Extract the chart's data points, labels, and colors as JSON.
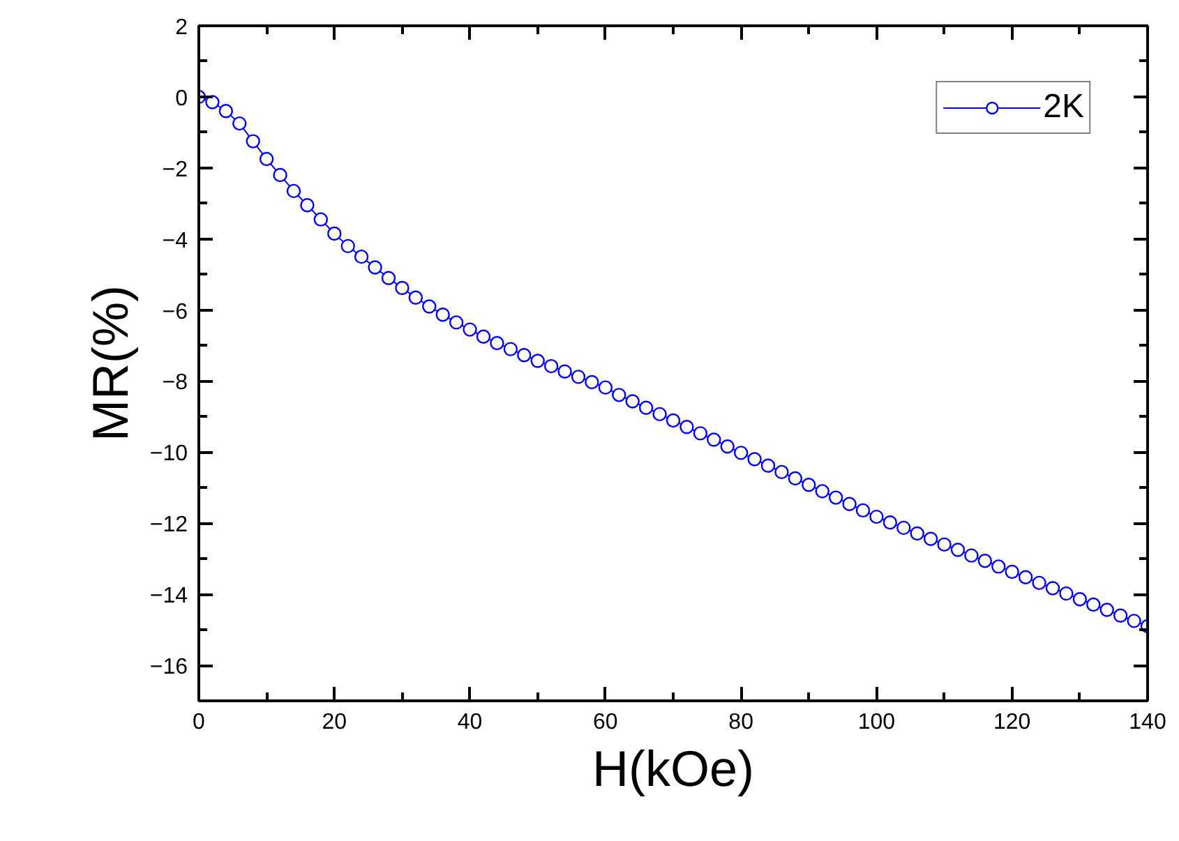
{
  "chart_data": {
    "type": "line",
    "xlabel": "H(kOe)",
    "ylabel": "MR(%)",
    "x": [
      0,
      2,
      4,
      6,
      8,
      10,
      12,
      14,
      16,
      18,
      20,
      22,
      24,
      26,
      28,
      30,
      32,
      34,
      36,
      38,
      40,
      42,
      44,
      46,
      48,
      50,
      52,
      54,
      56,
      58,
      60,
      62,
      64,
      66,
      68,
      70,
      72,
      74,
      76,
      78,
      80,
      82,
      84,
      86,
      88,
      90,
      92,
      94,
      96,
      98,
      100,
      102,
      104,
      106,
      108,
      110,
      112,
      114,
      116,
      118,
      120,
      122,
      124,
      126,
      128,
      130,
      132,
      134,
      136,
      138,
      140
    ],
    "series": [
      {
        "name": "2K",
        "color": "#0000ff",
        "values": [
          0.0,
          -0.15,
          -0.4,
          -0.75,
          -1.25,
          -1.75,
          -2.2,
          -2.65,
          -3.05,
          -3.45,
          -3.85,
          -4.2,
          -4.5,
          -4.8,
          -5.1,
          -5.38,
          -5.65,
          -5.9,
          -6.13,
          -6.35,
          -6.55,
          -6.75,
          -6.93,
          -7.1,
          -7.27,
          -7.43,
          -7.58,
          -7.73,
          -7.88,
          -8.03,
          -8.18,
          -8.39,
          -8.57,
          -8.75,
          -8.93,
          -9.11,
          -9.29,
          -9.47,
          -9.65,
          -9.84,
          -10.02,
          -10.2,
          -10.38,
          -10.56,
          -10.74,
          -10.92,
          -11.1,
          -11.28,
          -11.46,
          -11.64,
          -11.82,
          -11.98,
          -12.13,
          -12.29,
          -12.44,
          -12.6,
          -12.75,
          -12.91,
          -13.06,
          -13.22,
          -13.37,
          -13.52,
          -13.68,
          -13.83,
          -13.98,
          -14.14,
          -14.29,
          -14.44,
          -14.6,
          -14.75,
          -14.9
        ]
      }
    ],
    "xlim": [
      0,
      140
    ],
    "ylim": [
      -17,
      2
    ],
    "xticks": [
      0,
      20,
      40,
      60,
      80,
      100,
      120,
      140
    ],
    "yticks": [
      -16,
      -14,
      -12,
      -10,
      -8,
      -6,
      -4,
      -2,
      0,
      2
    ],
    "marker": "circle",
    "line_style": "solid",
    "grid": false,
    "legend": "top right"
  }
}
